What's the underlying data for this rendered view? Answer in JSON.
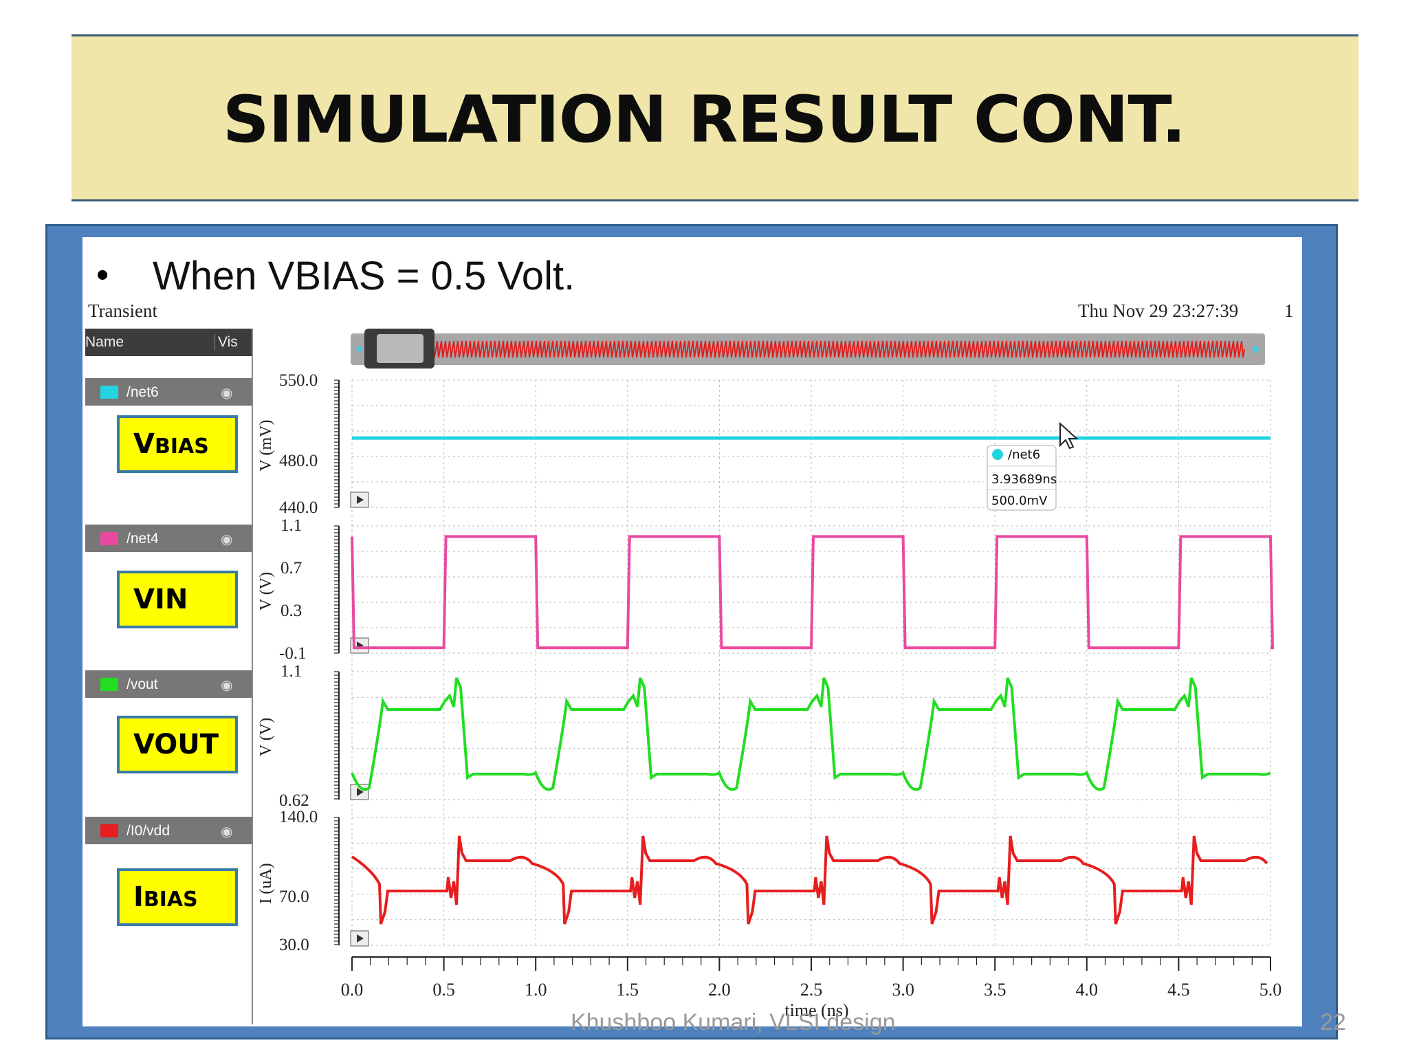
{
  "slide": {
    "title": "SIMULATION RESULT CONT.",
    "bullet": "When VBIAS = 0.5 Volt.",
    "footer": "Khushboo Kumari, VLSI design",
    "page": "22"
  },
  "window": {
    "tab": "Transient",
    "datetime": "Thu Nov 29 23:27:39",
    "number": "1"
  },
  "sidebar": {
    "name_header": "Name",
    "vis_header": "Vis",
    "signals": [
      {
        "label": "/net6",
        "color": "#22d3e0",
        "box_main": "V",
        "box_sub": "BIAS"
      },
      {
        "label": "/net4",
        "color": "#e84aa0",
        "box_main": "VIN",
        "box_sub": ""
      },
      {
        "label": "/vout",
        "color": "#22dd22",
        "box_main": "VOUT",
        "box_sub": ""
      },
      {
        "label": "/I0/vdd",
        "color": "#e61e1e",
        "box_main": "I",
        "box_sub": "BIAS"
      }
    ]
  },
  "plots": [
    {
      "ylabel": "V (mV)",
      "ticks": [
        "550.0",
        "480.0",
        "440.0"
      ]
    },
    {
      "ylabel": "V (V)",
      "ticks": [
        "1.1",
        "0.7",
        "0.3",
        "-0.1"
      ]
    },
    {
      "ylabel": "V (V)",
      "ticks": [
        "1.1",
        "0.62"
      ]
    },
    {
      "ylabel": "I (uA)",
      "ticks": [
        "140.0",
        "70.0",
        "30.0"
      ]
    }
  ],
  "xaxis": {
    "label": "time (ns)",
    "ticks": [
      "0.0",
      "0.5",
      "1.0",
      "1.5",
      "2.0",
      "2.5",
      "3.0",
      "3.5",
      "4.0",
      "4.5",
      "5.0"
    ]
  },
  "tooltip": {
    "signal": "/net6",
    "time": "3.93689ns",
    "value": "500.0mV"
  },
  "colors": {
    "net6": "#22d3e0",
    "net4": "#e84aa0",
    "vout": "#22dd22",
    "vdd": "#e61e1e",
    "frame": "#4f81bd",
    "title_bg": "#f0e6aa"
  }
}
